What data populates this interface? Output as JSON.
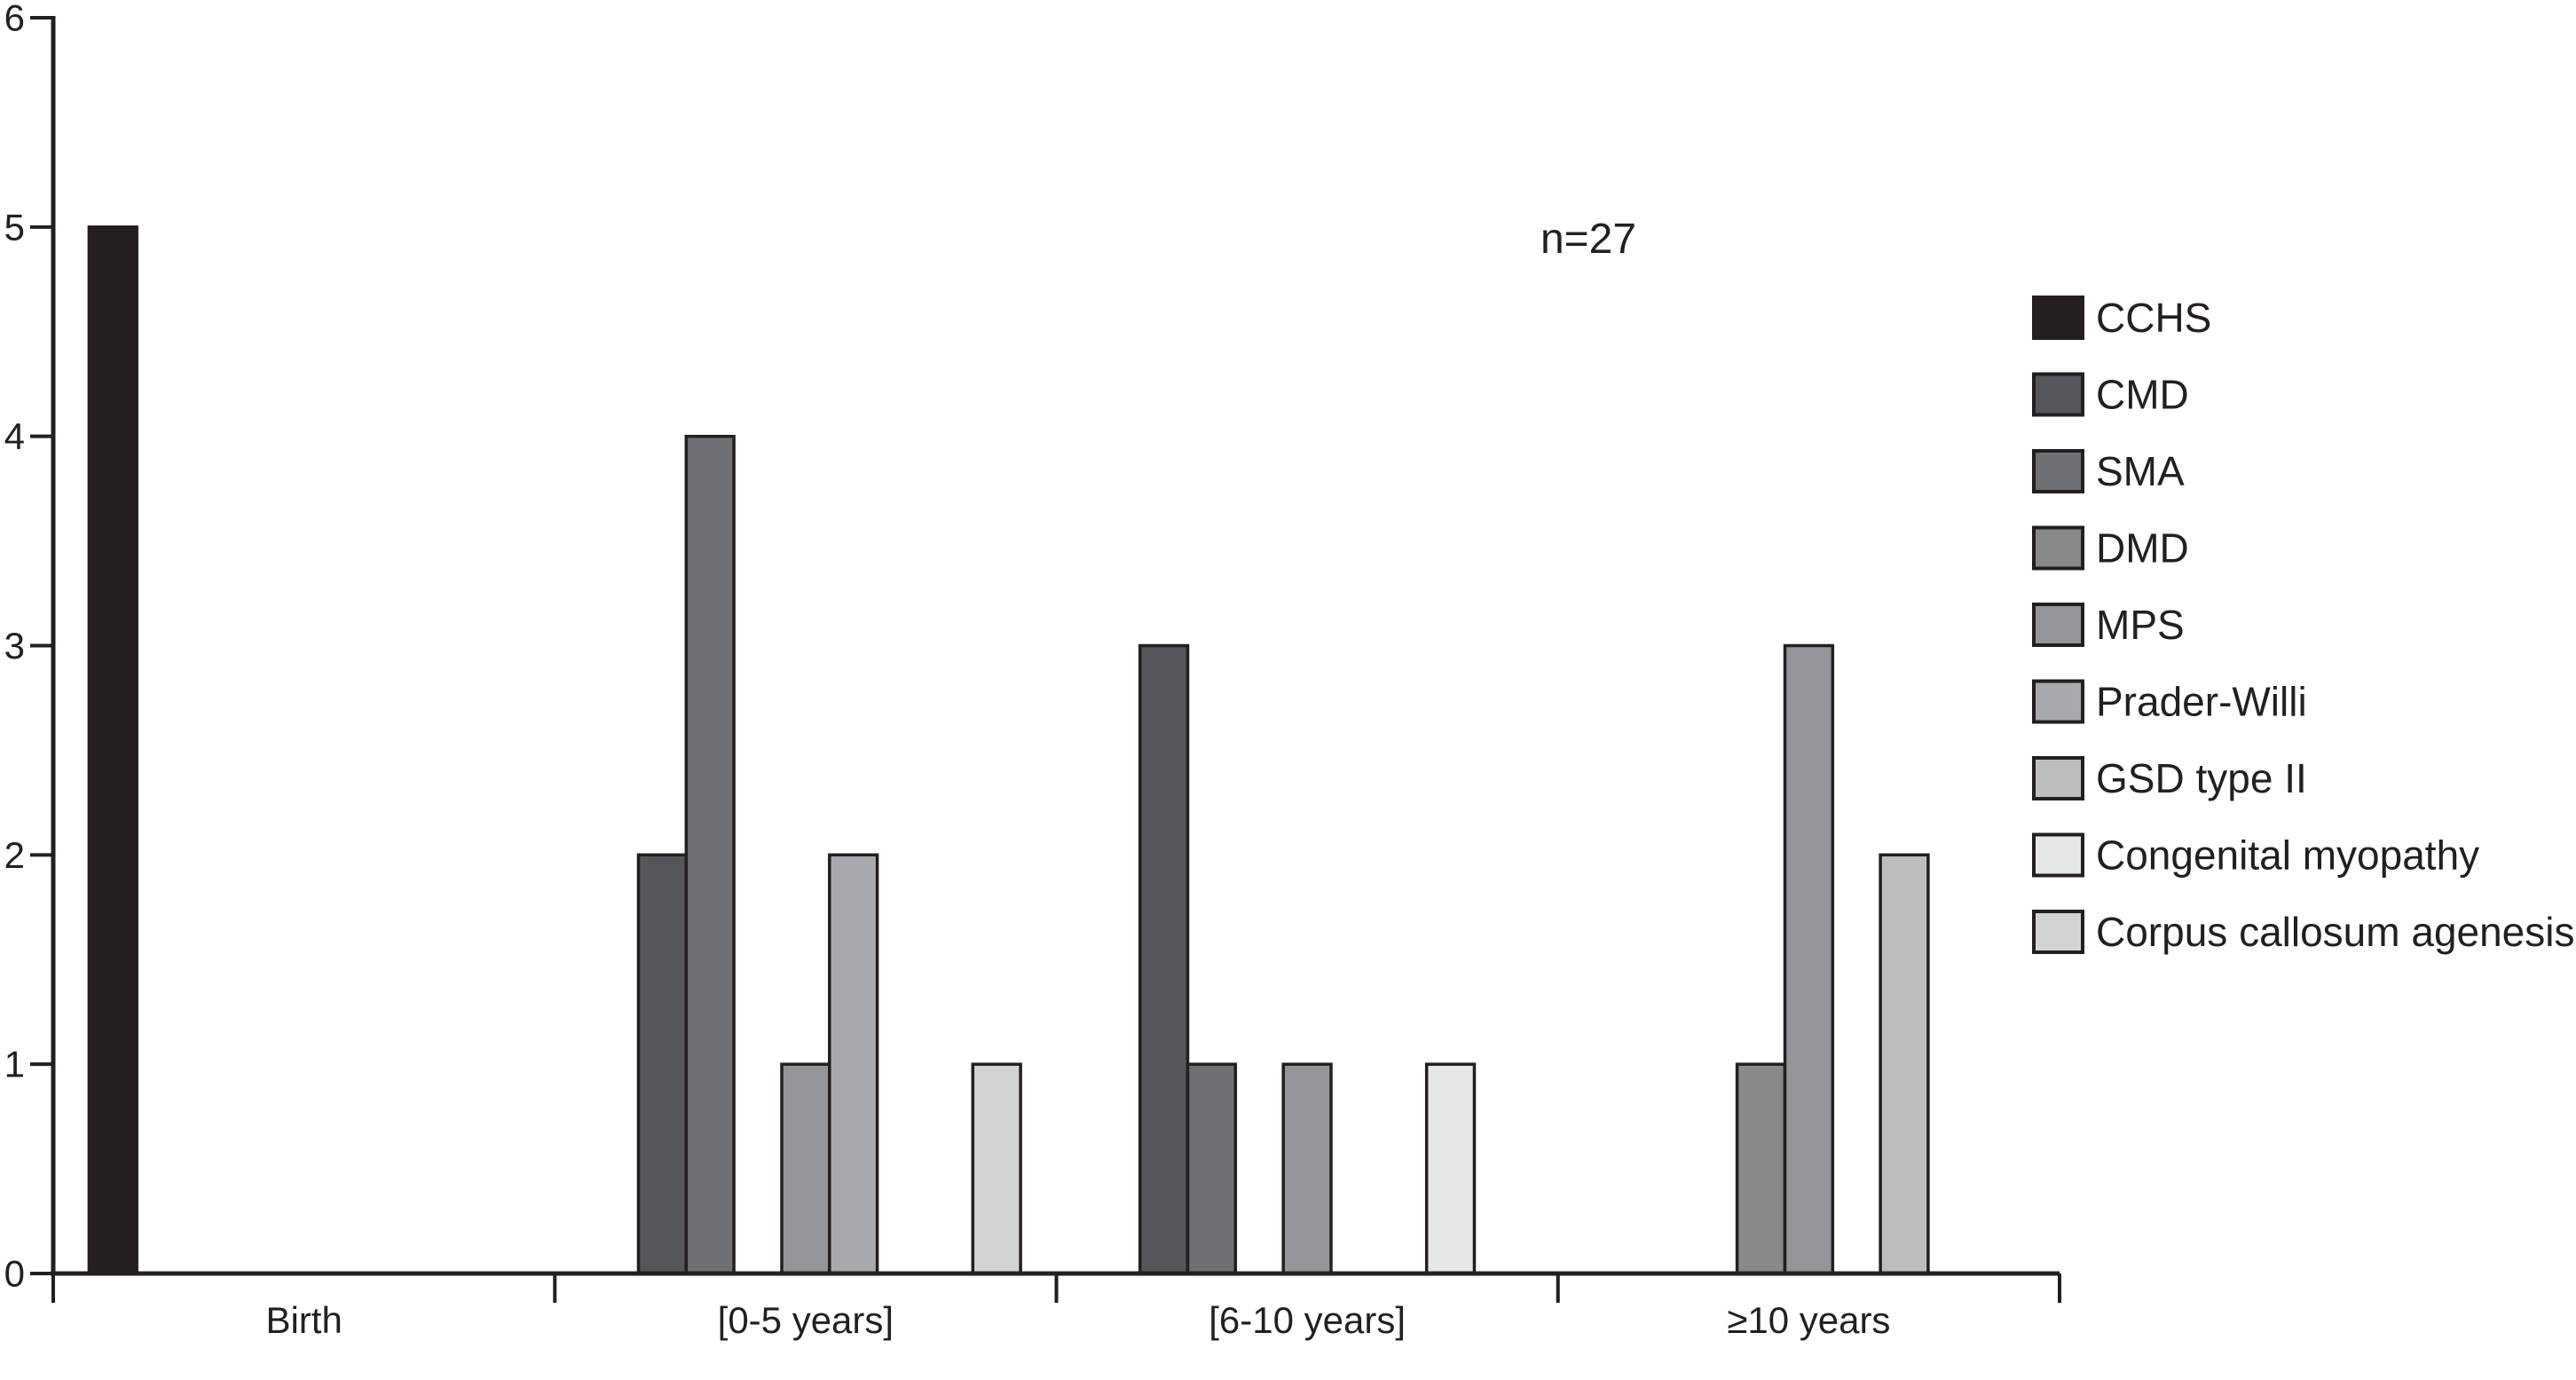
{
  "figure": {
    "title": "",
    "annotation": "n=27"
  },
  "chart_data": {
    "type": "bar",
    "title": "",
    "xlabel": "",
    "ylabel": "",
    "categories": [
      "Birth",
      "[0-5 years]",
      "[6-10 years]",
      "≥10 years"
    ],
    "series": [
      {
        "name": "CCHS",
        "color": "#231f20",
        "values": [
          5,
          0,
          0,
          0
        ]
      },
      {
        "name": "CMD",
        "color": "#545659",
        "values": [
          0,
          2,
          3,
          0
        ]
      },
      {
        "name": "SMA",
        "color": "#6e7073",
        "values": [
          0,
          4,
          1,
          0
        ]
      },
      {
        "name": "DMD",
        "color": "#87898b",
        "values": [
          0,
          0,
          0,
          1
        ]
      },
      {
        "name": "MPS",
        "color": "#939598",
        "values": [
          0,
          1,
          1,
          3
        ]
      },
      {
        "name": "Prader-Willi",
        "color": "#a8aaad",
        "values": [
          0,
          2,
          0,
          0
        ]
      },
      {
        "name": "GSD type II",
        "color": "#bcbec0",
        "values": [
          0,
          0,
          0,
          2
        ]
      },
      {
        "name": "Congenital myopathy",
        "color": "#e6e7e8",
        "values": [
          0,
          0,
          1,
          0
        ]
      },
      {
        "name": "Corpus callosum agenesis",
        "color": "#d1d3d4",
        "values": [
          0,
          1,
          0,
          0
        ]
      }
    ],
    "ylim": [
      0,
      6
    ],
    "yticks": [
      0,
      1,
      2,
      3,
      4,
      5,
      6
    ],
    "grid": false,
    "legend_position": "right",
    "annotation": {
      "text": "n=27"
    },
    "axis_color": "#231f20",
    "bar_outline_color": "#231f20",
    "total_n": 27
  }
}
